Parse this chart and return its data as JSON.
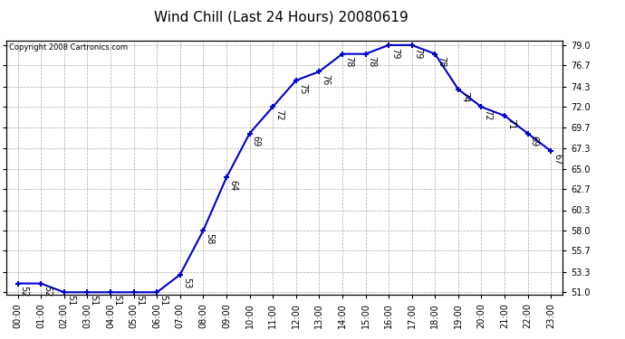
{
  "title": "Wind Chill (Last 24 Hours) 20080619",
  "copyright": "Copyright 2008 Cartronics.com",
  "hours": [
    "00:00",
    "01:00",
    "02:00",
    "03:00",
    "04:00",
    "05:00",
    "06:00",
    "07:00",
    "08:00",
    "09:00",
    "10:00",
    "11:00",
    "12:00",
    "13:00",
    "14:00",
    "15:00",
    "16:00",
    "17:00",
    "18:00",
    "19:00",
    "20:00",
    "21:00",
    "22:00",
    "23:00"
  ],
  "values": [
    52,
    52,
    51,
    51,
    51,
    51,
    51,
    53,
    58,
    64,
    69,
    72,
    75,
    76,
    78,
    78,
    79,
    79,
    78,
    74,
    72,
    71,
    69,
    67
  ],
  "ylim_min": 51.0,
  "ylim_max": 79.0,
  "yticks": [
    51.0,
    53.3,
    55.7,
    58.0,
    60.3,
    62.7,
    65.0,
    67.3,
    69.7,
    72.0,
    74.3,
    76.7,
    79.0
  ],
  "line_color": "#0000cc",
  "marker": "+",
  "marker_size": 5,
  "marker_linewidth": 1.5,
  "grid_color": "#aaaaaa",
  "bg_color": "#ffffff",
  "title_fontsize": 11,
  "copyright_fontsize": 6,
  "label_fontsize": 7,
  "annotation_fontsize": 7,
  "tick_fontsize": 7
}
